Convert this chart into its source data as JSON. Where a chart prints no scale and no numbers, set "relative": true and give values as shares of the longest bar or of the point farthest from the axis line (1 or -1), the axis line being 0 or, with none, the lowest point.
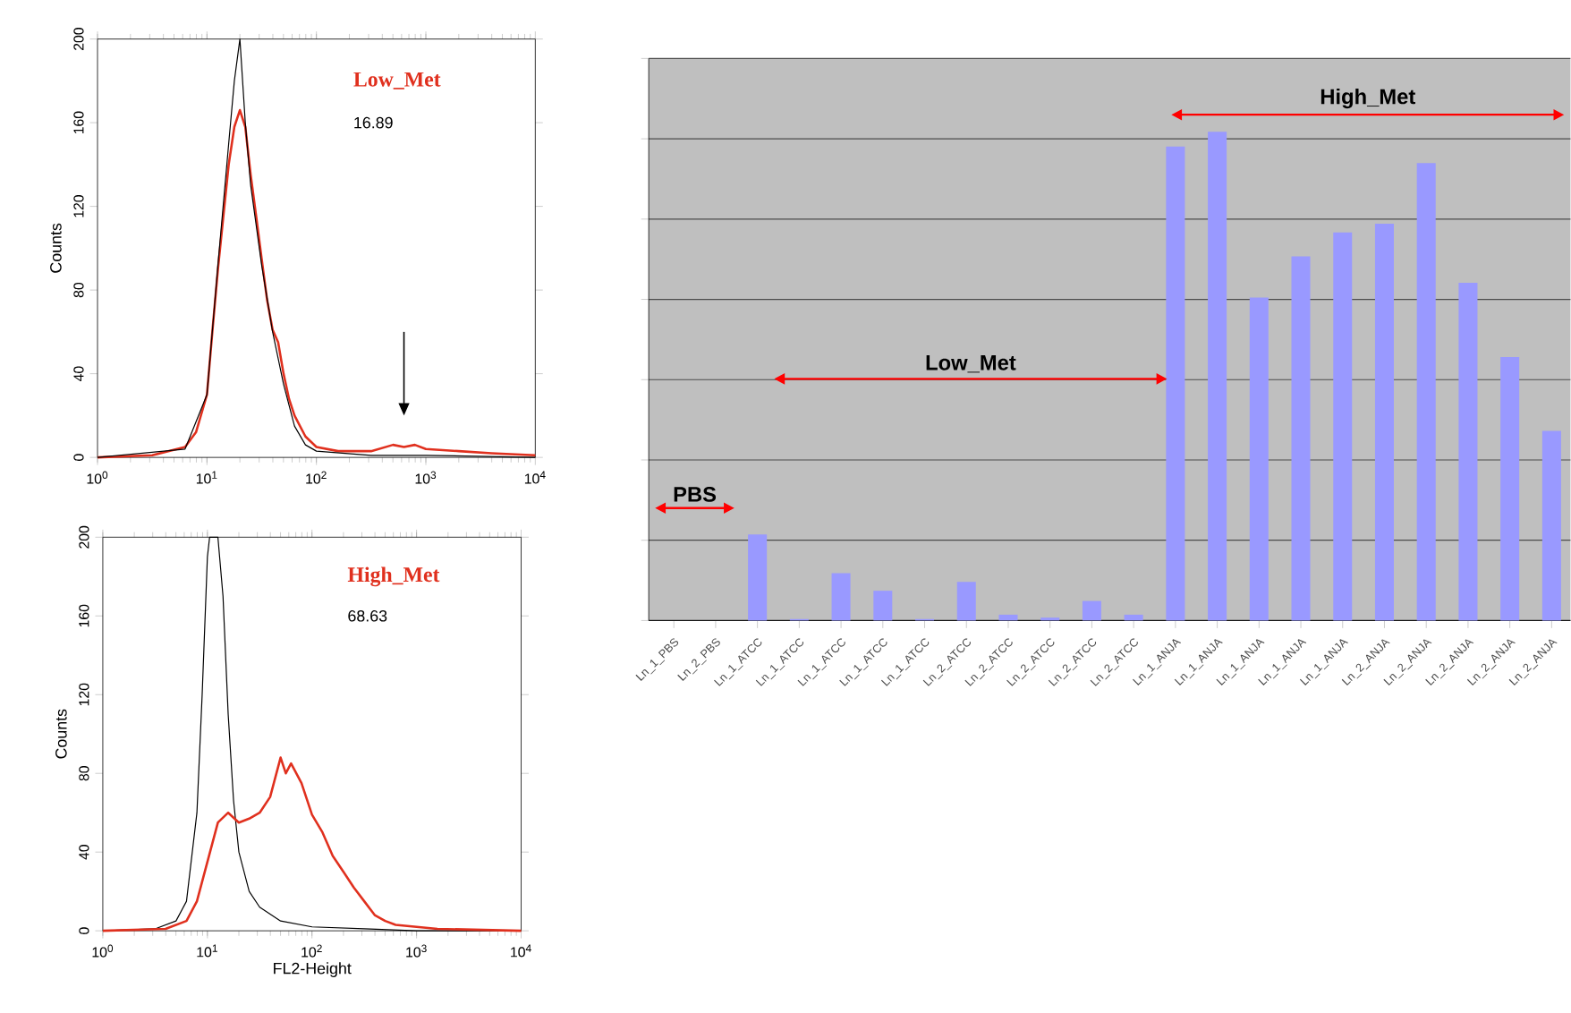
{
  "chart_data": [
    {
      "type": "line",
      "ylabel": "Counts",
      "log": "x",
      "xlim": [
        1,
        10000
      ],
      "ylim": [
        0,
        200
      ],
      "xticks": [
        {
          "value": 1,
          "label": "10$^{0}$"
        },
        {
          "value": 10,
          "label": "10$^{1}$"
        },
        {
          "value": 100,
          "label": "10$^{2}$"
        },
        {
          "value": 1000,
          "label": "10$^{3}$"
        },
        {
          "value": 10000,
          "label": "10$^{4}$"
        }
      ],
      "yticks": [
        0,
        40,
        80,
        120,
        160,
        200
      ],
      "annotations": [
        "Low_Met",
        "16.89"
      ],
      "series": [
        {
          "color": "#e0301e",
          "x": [
            1,
            3.16,
            6.31,
            7.94,
            10,
            11.2,
            12.6,
            14.1,
            15.8,
            17.8,
            20,
            22.4,
            25.1,
            28.2,
            31.6,
            35.5,
            39.8,
            44.7,
            50.1,
            56.2,
            63.1,
            79.4,
            100,
            158,
            316,
            501,
            631,
            794,
            1000,
            2000,
            3981,
            10000
          ],
          "values": [
            0,
            1,
            5,
            12,
            30,
            60,
            90,
            115,
            140,
            158,
            166,
            158,
            135,
            115,
            95,
            75,
            61,
            55,
            40,
            28,
            20,
            10,
            5,
            3,
            3,
            6,
            5,
            6,
            4,
            3,
            2,
            1
          ]
        },
        {
          "color": "#000000",
          "x": [
            1,
            6.31,
            10,
            12.6,
            15.8,
            17.8,
            20,
            22.4,
            25.1,
            31.6,
            39.8,
            50.1,
            63.1,
            79.4,
            100,
            316,
            1000,
            10000
          ],
          "values": [
            0,
            4,
            30,
            92,
            150,
            180,
            200,
            160,
            130,
            92,
            60,
            35,
            15,
            6,
            3,
            1,
            1,
            0
          ]
        }
      ]
    },
    {
      "type": "line",
      "ylabel": "Counts",
      "xlabel": "FL2-Height",
      "log": "x",
      "xlim": [
        1,
        10000
      ],
      "ylim": [
        0,
        200
      ],
      "xticks": [
        {
          "value": 1,
          "label": "10$^{0}$"
        },
        {
          "value": 10,
          "label": "10$^{1}$"
        },
        {
          "value": 100,
          "label": "10$^{2}$"
        },
        {
          "value": 1000,
          "label": "10$^{3}$"
        },
        {
          "value": 10000,
          "label": "10$^{4}$"
        }
      ],
      "yticks": [
        0,
        40,
        80,
        120,
        160,
        200
      ],
      "annotations": [
        "High_Met",
        "68.63"
      ],
      "series": [
        {
          "color": "#000000",
          "x": [
            1,
            3.16,
            5.01,
            6.31,
            7.94,
            8.91,
            10,
            10.5,
            12.6,
            14.1,
            15.8,
            17.8,
            20,
            25.1,
            31.6,
            50.1,
            100,
            316,
            1000,
            10000
          ],
          "values": [
            0,
            1,
            5,
            15,
            60,
            120,
            190,
            200,
            200,
            170,
            110,
            66,
            40,
            20,
            12,
            5,
            2,
            1,
            0,
            0
          ]
        },
        {
          "color": "#e0301e",
          "x": [
            1,
            3.98,
            6.31,
            7.94,
            10,
            12.6,
            15.8,
            20,
            25.1,
            31.6,
            39.8,
            50.1,
            56.2,
            63.1,
            79.4,
            100,
            126,
            158,
            200,
            251,
            316,
            398,
            501,
            631,
            1000,
            1585,
            10000
          ],
          "values": [
            0,
            1,
            5,
            15,
            35,
            55,
            60,
            55,
            57,
            60,
            68,
            88,
            80,
            85,
            75,
            59,
            50,
            38,
            30,
            22,
            15,
            8,
            5,
            3,
            2,
            1,
            0
          ]
        }
      ]
    },
    {
      "type": "bar",
      "relative": true,
      "grid": "y",
      "color": "#9999ff",
      "categories": [
        "Ln_1_PBS",
        "Ln_2_PBS",
        "Ln_1_ATCC",
        "Ln_1_ATCC",
        "Ln_1_ATCC",
        "Ln_1_ATCC",
        "Ln_1_ATCC",
        "Ln_2_ATCC",
        "Ln_2_ATCC",
        "Ln_2_ATCC",
        "Ln_2_ATCC",
        "Ln_2_ATCC",
        "Ln_1_ANJA",
        "Ln_1_ANJA",
        "Ln_1_ANJA",
        "Ln_1_ANJA",
        "Ln_1_ANJA",
        "Ln_2_ANJA",
        "Ln_2_ANJA",
        "Ln_2_ANJA",
        "Ln_2_ANJA",
        "Ln_2_ANJA"
      ],
      "values": [
        null,
        null,
        0.176,
        0.003,
        0.097,
        0.061,
        0.003,
        0.079,
        0.012,
        0.006,
        0.04,
        0.012,
        0.97,
        1,
        0.661,
        0.745,
        0.794,
        0.812,
        0.936,
        0.691,
        0.539,
        0.388
      ],
      "annotations": [
        "PBS",
        "Low_Met",
        "High_Met"
      ]
    }
  ]
}
